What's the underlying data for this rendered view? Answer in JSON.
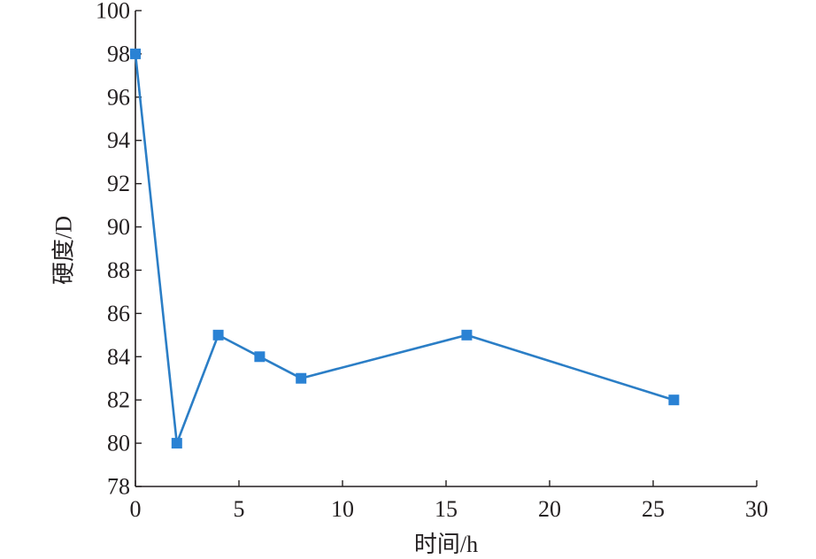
{
  "chart_data": {
    "type": "line",
    "x": [
      0,
      2,
      4,
      6,
      8,
      16,
      26
    ],
    "y": [
      98,
      80,
      85,
      84,
      83,
      85,
      82
    ],
    "xlabel": "时间/h",
    "ylabel": "硬度/D",
    "xlim": [
      0,
      30
    ],
    "ylim": [
      78,
      100
    ],
    "xticks": [
      "0",
      "5",
      "10",
      "15",
      "20",
      "25",
      "30"
    ],
    "yticks": [
      "78",
      "80",
      "82",
      "84",
      "86",
      "88",
      "90",
      "92",
      "94",
      "96",
      "98",
      "100"
    ],
    "grid": false,
    "legend": false,
    "marker": "square",
    "line_color": "#2b7ec6",
    "marker_color": "#2a82d4"
  }
}
